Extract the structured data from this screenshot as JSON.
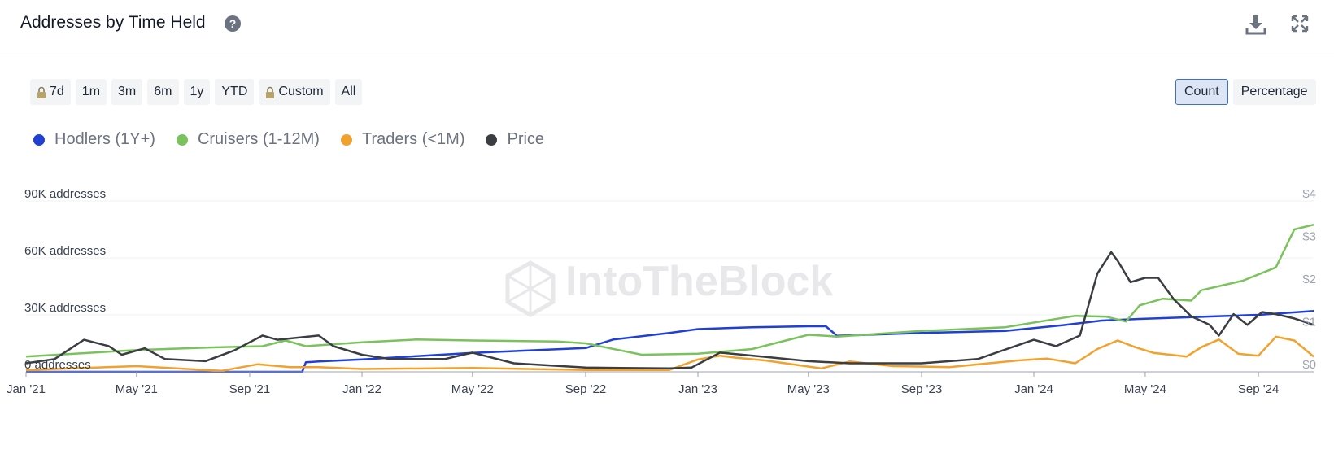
{
  "header": {
    "title": "Addresses by Time Held",
    "help_icon": "help-circle-icon",
    "download_icon": "download-icon",
    "expand_icon": "expand-icon"
  },
  "ranges": [
    {
      "label": "7d",
      "locked": true
    },
    {
      "label": "1m",
      "locked": false
    },
    {
      "label": "3m",
      "locked": false
    },
    {
      "label": "6m",
      "locked": false
    },
    {
      "label": "1y",
      "locked": false
    },
    {
      "label": "YTD",
      "locked": false
    },
    {
      "label": "Custom",
      "locked": true
    },
    {
      "label": "All",
      "locked": false
    }
  ],
  "mode": {
    "count": "Count",
    "percentage": "Percentage",
    "selected": "Count"
  },
  "watermark": "IntoTheBlock",
  "chart_data": {
    "type": "line",
    "x_axis": {
      "ticks": [
        "Jan '21",
        "May '21",
        "Sep '21",
        "Jan '22",
        "May '22",
        "Sep '22",
        "Jan '23",
        "May '23",
        "Sep '23",
        "Jan '24",
        "May '24",
        "Sep '24"
      ],
      "range": [
        "2021-01-01",
        "2024-10-31"
      ]
    },
    "y_axis_left": {
      "ticks": [
        "0 addresses",
        "30K addresses",
        "60K addresses",
        "90K addresses"
      ],
      "min": 0,
      "max": 90000
    },
    "y_axis_right": {
      "ticks": [
        "$0",
        "$1",
        "$2",
        "$3",
        "$4"
      ],
      "min": 0,
      "max": 4
    },
    "grid": true,
    "legend_position": "top-left",
    "colors": {
      "Hodlers (1Y+)": "#1f3fd6",
      "Cruisers (1-12M)": "#7ac35c",
      "Traders (<1M)": "#f2a22c",
      "Price": "#3a3d42"
    },
    "series": [
      {
        "name": "Hodlers (1Y+)",
        "axis": "left",
        "x": [
          "2021-01-01",
          "2021-05-01",
          "2021-10-28",
          "2021-11-01",
          "2021-11-15",
          "2022-01-01",
          "2022-05-01",
          "2022-09-01",
          "2022-10-01",
          "2022-12-01",
          "2023-01-01",
          "2023-03-01",
          "2023-05-01",
          "2023-05-20",
          "2023-06-01",
          "2023-09-01",
          "2023-12-01",
          "2024-01-01",
          "2024-02-01",
          "2024-03-15",
          "2024-05-01",
          "2024-09-01",
          "2024-10-31"
        ],
        "y": [
          0,
          0,
          0,
          5000,
          5500,
          6500,
          10000,
          12500,
          17000,
          20500,
          22500,
          23500,
          24000,
          24000,
          19000,
          20500,
          21500,
          23000,
          24500,
          27000,
          28000,
          30000,
          32000
        ]
      },
      {
        "name": "Cruisers (1-12M)",
        "axis": "left",
        "x": [
          "2021-01-01",
          "2021-05-01",
          "2021-08-01",
          "2021-09-15",
          "2021-10-10",
          "2021-11-01",
          "2022-01-01",
          "2022-03-01",
          "2022-05-01",
          "2022-08-01",
          "2022-09-01",
          "2022-11-01",
          "2023-01-01",
          "2023-03-01",
          "2023-05-01",
          "2023-05-20",
          "2023-06-01",
          "2023-09-01",
          "2023-12-01",
          "2024-02-15",
          "2024-03-20",
          "2024-04-10",
          "2024-04-25",
          "2024-05-20",
          "2024-06-20",
          "2024-07-01",
          "2024-08-15",
          "2024-09-20",
          "2024-10-10",
          "2024-10-31"
        ],
        "y": [
          8000,
          11500,
          13000,
          13500,
          16500,
          13500,
          15500,
          17000,
          16500,
          16000,
          15000,
          9000,
          9500,
          12000,
          19500,
          19000,
          18500,
          21500,
          23500,
          29500,
          29000,
          26500,
          35000,
          38500,
          37500,
          43000,
          48000,
          55000,
          75000,
          77500
        ]
      },
      {
        "name": "Traders (<1M)",
        "axis": "left",
        "x": [
          "2021-01-01",
          "2021-05-01",
          "2021-08-01",
          "2021-09-10",
          "2021-10-15",
          "2021-11-15",
          "2022-01-01",
          "2022-05-01",
          "2022-09-01",
          "2022-12-01",
          "2023-01-01",
          "2023-01-25",
          "2023-02-10",
          "2023-03-15",
          "2023-05-15",
          "2023-06-15",
          "2023-08-01",
          "2023-10-01",
          "2023-12-15",
          "2024-01-15",
          "2024-02-15",
          "2024-03-10",
          "2024-04-01",
          "2024-04-20",
          "2024-05-10",
          "2024-06-15",
          "2024-07-01",
          "2024-07-20",
          "2024-08-10",
          "2024-09-01",
          "2024-09-20",
          "2024-10-10",
          "2024-10-31"
        ],
        "y": [
          1000,
          3000,
          500,
          4000,
          2500,
          2500,
          1500,
          2000,
          1000,
          1000,
          6500,
          8500,
          7500,
          6000,
          1800,
          5500,
          3000,
          2500,
          6000,
          7000,
          4500,
          12000,
          16500,
          13000,
          10000,
          8000,
          13000,
          17000,
          9500,
          8500,
          18500,
          16500,
          8000
        ]
      },
      {
        "name": "Price",
        "axis": "right",
        "x": [
          "2021-01-01",
          "2021-02-01",
          "2021-03-05",
          "2021-04-01",
          "2021-04-15",
          "2021-05-10",
          "2021-06-01",
          "2021-07-15",
          "2021-08-15",
          "2021-09-15",
          "2021-10-01",
          "2021-11-15",
          "2021-12-01",
          "2022-01-01",
          "2022-02-01",
          "2022-04-01",
          "2022-05-01",
          "2022-06-15",
          "2022-09-01",
          "2022-12-01",
          "2022-12-25",
          "2023-01-25",
          "2023-03-15",
          "2023-05-01",
          "2023-06-15",
          "2023-09-01",
          "2023-11-01",
          "2024-01-01",
          "2024-01-25",
          "2024-02-20",
          "2024-03-10",
          "2024-03-25",
          "2024-04-01",
          "2024-04-15",
          "2024-05-01",
          "2024-05-15",
          "2024-06-01",
          "2024-06-20",
          "2024-07-10",
          "2024-07-20",
          "2024-08-05",
          "2024-08-20",
          "2024-09-05",
          "2024-09-20",
          "2024-10-10",
          "2024-10-31"
        ],
        "y": [
          0.2,
          0.3,
          0.75,
          0.6,
          0.4,
          0.55,
          0.3,
          0.25,
          0.5,
          0.85,
          0.75,
          0.85,
          0.6,
          0.4,
          0.3,
          0.3,
          0.45,
          0.2,
          0.1,
          0.08,
          0.1,
          0.45,
          0.35,
          0.25,
          0.2,
          0.2,
          0.3,
          0.75,
          0.6,
          0.85,
          2.3,
          2.8,
          2.6,
          2.1,
          2.2,
          2.2,
          1.7,
          1.3,
          1.1,
          0.85,
          1.35,
          1.1,
          1.4,
          1.35,
          1.25,
          1.1
        ]
      }
    ]
  }
}
